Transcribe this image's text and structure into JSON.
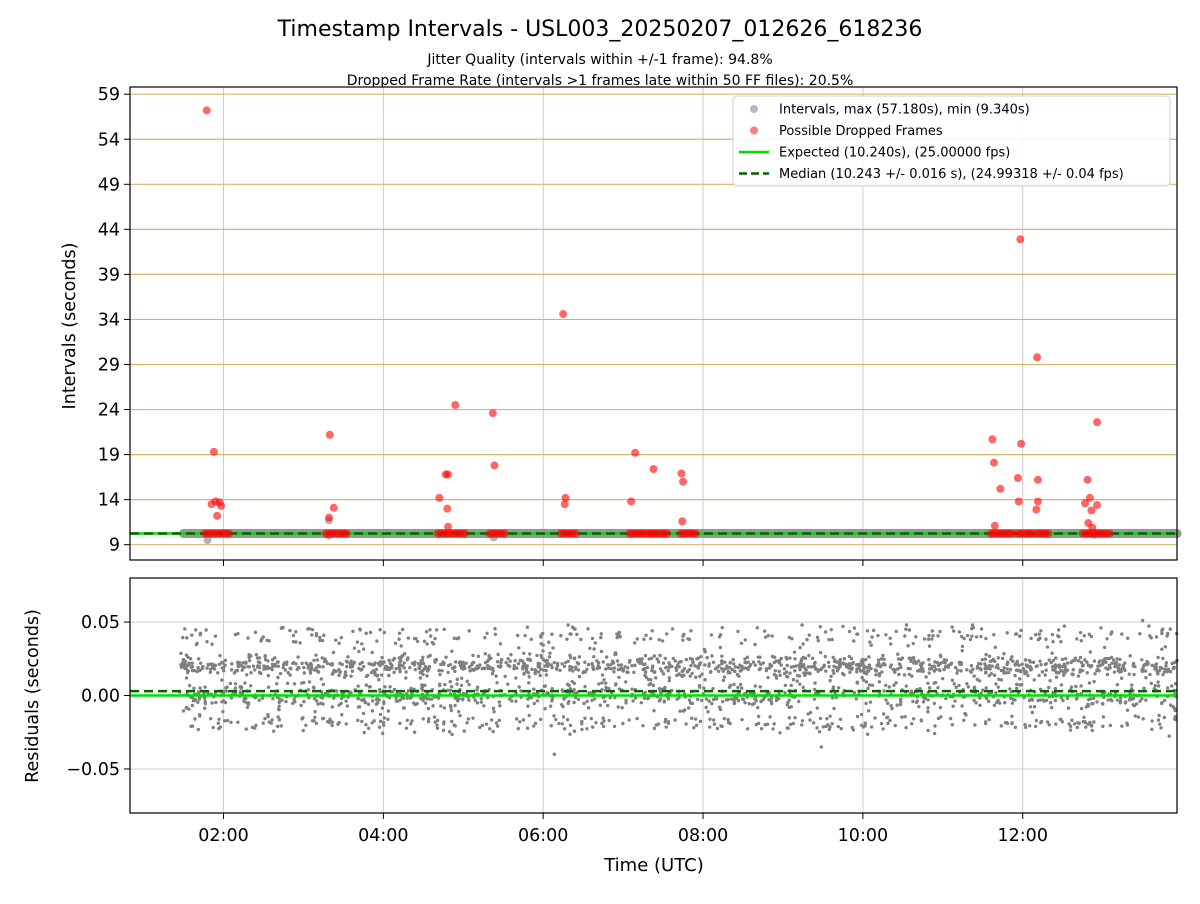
{
  "title": "Timestamp Intervals - USL003_20250207_012626_618236",
  "subtitle_1": "Jitter Quality (intervals within +/-1 frame): 94.8%",
  "subtitle_2": "Dropped Frame Rate (intervals >1 frames late within 50 FF files): 20.5%",
  "xlabel": "Time (UTC)",
  "colors": {
    "intervals": "#808080",
    "dropped": "#ff0000",
    "expected": "#00dd00",
    "median": "#006400",
    "hgrid_top": "#d4b86a",
    "grid": "#cccccc"
  },
  "chart_data": [
    {
      "type": "scatter",
      "ylabel": "Intervals (seconds)",
      "x_ticks": [
        "02:00",
        "04:00",
        "06:00",
        "08:00",
        "10:00",
        "12:00"
      ],
      "x_tick_hours": [
        2,
        4,
        6,
        8,
        10,
        12
      ],
      "xlim_hours": [
        0.83,
        13.93
      ],
      "ylim": [
        7.3,
        59.8
      ],
      "y_ticks": [
        9,
        14,
        19,
        24,
        29,
        34,
        39,
        44,
        49,
        54,
        59
      ],
      "grid": true,
      "legend_position": "top-right",
      "legend": [
        {
          "label": "Intervals, max (57.180s), min (9.340s)",
          "kind": "marker",
          "color": "#a0a0a0"
        },
        {
          "label": "Possible Dropped Frames",
          "kind": "marker",
          "color": "#ff5555"
        },
        {
          "label": "Expected (10.240s), (25.00000 fps)",
          "kind": "line",
          "color": "#00dd00"
        },
        {
          "label": "Median (10.243 +/- 0.016 s), (24.99318 +/- 0.04 fps)",
          "kind": "dashed",
          "color": "#006400"
        }
      ],
      "expected_interval": 10.24,
      "median_interval": 10.243,
      "baseline_range_hours": [
        1.5,
        13.93
      ],
      "interval_outliers_gray": [
        {
          "x": 1.8,
          "y": 9.5
        },
        {
          "x": 3.32,
          "y": 11.7
        },
        {
          "x": 3.32,
          "y": 10.0
        },
        {
          "x": 5.38,
          "y": 9.8
        },
        {
          "x": 12.9,
          "y": 10.1
        }
      ],
      "dropped_frames": [
        {
          "x": 1.79,
          "y": 57.2
        },
        {
          "x": 1.88,
          "y": 19.3
        },
        {
          "x": 1.85,
          "y": 13.5
        },
        {
          "x": 1.9,
          "y": 13.8
        },
        {
          "x": 1.95,
          "y": 13.7
        },
        {
          "x": 1.97,
          "y": 13.3
        },
        {
          "x": 1.92,
          "y": 12.2
        },
        {
          "x": 3.33,
          "y": 21.2
        },
        {
          "x": 3.38,
          "y": 13.1
        },
        {
          "x": 3.32,
          "y": 12.0
        },
        {
          "x": 4.7,
          "y": 14.2
        },
        {
          "x": 4.78,
          "y": 16.8
        },
        {
          "x": 4.81,
          "y": 16.8
        },
        {
          "x": 4.8,
          "y": 13.0
        },
        {
          "x": 4.81,
          "y": 11.0
        },
        {
          "x": 4.9,
          "y": 24.5
        },
        {
          "x": 5.37,
          "y": 23.6
        },
        {
          "x": 5.39,
          "y": 17.8
        },
        {
          "x": 6.25,
          "y": 34.6
        },
        {
          "x": 6.28,
          "y": 14.2
        },
        {
          "x": 6.27,
          "y": 13.5
        },
        {
          "x": 7.15,
          "y": 19.2
        },
        {
          "x": 7.1,
          "y": 13.8
        },
        {
          "x": 7.38,
          "y": 17.4
        },
        {
          "x": 7.73,
          "y": 16.9
        },
        {
          "x": 7.75,
          "y": 16.0
        },
        {
          "x": 7.74,
          "y": 11.6
        },
        {
          "x": 11.62,
          "y": 20.7
        },
        {
          "x": 11.64,
          "y": 18.1
        },
        {
          "x": 11.72,
          "y": 15.2
        },
        {
          "x": 11.65,
          "y": 11.1
        },
        {
          "x": 11.97,
          "y": 42.9
        },
        {
          "x": 11.98,
          "y": 20.2
        },
        {
          "x": 11.94,
          "y": 16.4
        },
        {
          "x": 11.95,
          "y": 13.8
        },
        {
          "x": 12.18,
          "y": 29.8
        },
        {
          "x": 12.19,
          "y": 16.2
        },
        {
          "x": 12.19,
          "y": 13.8
        },
        {
          "x": 12.17,
          "y": 12.9
        },
        {
          "x": 12.78,
          "y": 13.6
        },
        {
          "x": 12.81,
          "y": 16.2
        },
        {
          "x": 12.84,
          "y": 14.2
        },
        {
          "x": 12.86,
          "y": 12.8
        },
        {
          "x": 12.82,
          "y": 11.4
        },
        {
          "x": 12.87,
          "y": 10.9
        },
        {
          "x": 12.93,
          "y": 22.6
        },
        {
          "x": 12.93,
          "y": 13.4
        }
      ],
      "dropped_frame_clusters_at_expected": [
        {
          "from": 1.77,
          "to": 2.1,
          "y": 10.24
        },
        {
          "from": 3.28,
          "to": 3.55,
          "y": 10.24
        },
        {
          "from": 4.68,
          "to": 5.05,
          "y": 10.24
        },
        {
          "from": 5.33,
          "to": 5.55,
          "y": 10.24
        },
        {
          "from": 6.22,
          "to": 6.42,
          "y": 10.24
        },
        {
          "from": 7.08,
          "to": 7.35,
          "y": 10.24
        },
        {
          "from": 7.36,
          "to": 7.55,
          "y": 10.24
        },
        {
          "from": 7.72,
          "to": 7.92,
          "y": 10.24
        },
        {
          "from": 11.6,
          "to": 11.88,
          "y": 10.24
        },
        {
          "from": 11.93,
          "to": 12.15,
          "y": 10.24
        },
        {
          "from": 12.17,
          "to": 12.35,
          "y": 10.24
        },
        {
          "from": 12.75,
          "to": 13.1,
          "y": 10.24
        }
      ]
    },
    {
      "type": "scatter",
      "ylabel": "Residuals (seconds)",
      "ylim": [
        -0.08,
        0.08
      ],
      "y_ticks": [
        -0.05,
        0.0,
        0.05
      ],
      "y_tick_labels": [
        "−0.05",
        "0.00",
        "0.05"
      ],
      "x_ticks": [
        "02:00",
        "04:00",
        "06:00",
        "08:00",
        "10:00",
        "12:00"
      ],
      "x_tick_hours": [
        2,
        4,
        6,
        8,
        10,
        12
      ],
      "xlim_hours": [
        0.83,
        13.93
      ],
      "grid": true,
      "expected_residual": 0.0,
      "median_residual": 0.003,
      "residual_bands": [
        {
          "center": 0.02,
          "spread": 0.004,
          "weight": 0.45
        },
        {
          "center": 0.0,
          "spread": 0.005,
          "weight": 0.33
        },
        {
          "center": -0.019,
          "spread": 0.003,
          "weight": 0.12
        },
        {
          "center": 0.04,
          "spread": 0.004,
          "weight": 0.1
        }
      ],
      "residual_points_count": 2600,
      "residual_time_range_hours": [
        1.45,
        13.93
      ],
      "extreme_points": [
        {
          "x": 6.14,
          "y": -0.04
        },
        {
          "x": 9.48,
          "y": -0.035
        },
        {
          "x": 13.5,
          "y": 0.051
        }
      ]
    }
  ]
}
